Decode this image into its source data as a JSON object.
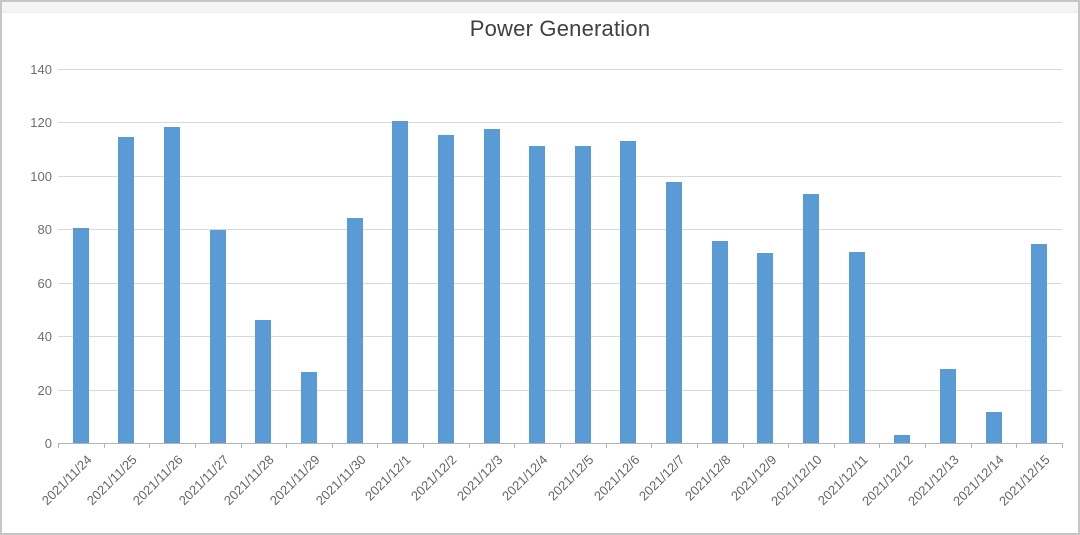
{
  "chart_data": {
    "type": "bar",
    "title": "Power Generation",
    "categories": [
      "2021/11/24",
      "2021/11/25",
      "2021/11/26",
      "2021/11/27",
      "2021/11/28",
      "2021/11/29",
      "2021/11/30",
      "2021/12/1",
      "2021/12/2",
      "2021/12/3",
      "2021/12/4",
      "2021/12/5",
      "2021/12/6",
      "2021/12/7",
      "2021/12/8",
      "2021/12/9",
      "2021/12/10",
      "2021/12/11",
      "2021/12/12",
      "2021/12/13",
      "2021/12/14",
      "2021/12/15"
    ],
    "values": [
      80.5,
      114.5,
      118,
      79.5,
      46,
      26.5,
      84,
      120.5,
      115,
      117.5,
      111,
      111,
      113,
      97.5,
      75.5,
      71,
      93,
      71.5,
      3,
      27.5,
      11.5,
      74.5
    ],
    "xlabel": "",
    "ylabel": "",
    "ylim": [
      0,
      140
    ],
    "ytick_step": 20,
    "ytick_labels": [
      "0",
      "20",
      "40",
      "60",
      "80",
      "100",
      "120",
      "140"
    ],
    "grid": true,
    "legend_position": "none",
    "colors": {
      "bar": "#5B9BD5",
      "gridline": "#d9d9d9",
      "axis_line": "#b3b3b3",
      "tick_label": "#6f6f6f",
      "title": "#404040"
    }
  }
}
